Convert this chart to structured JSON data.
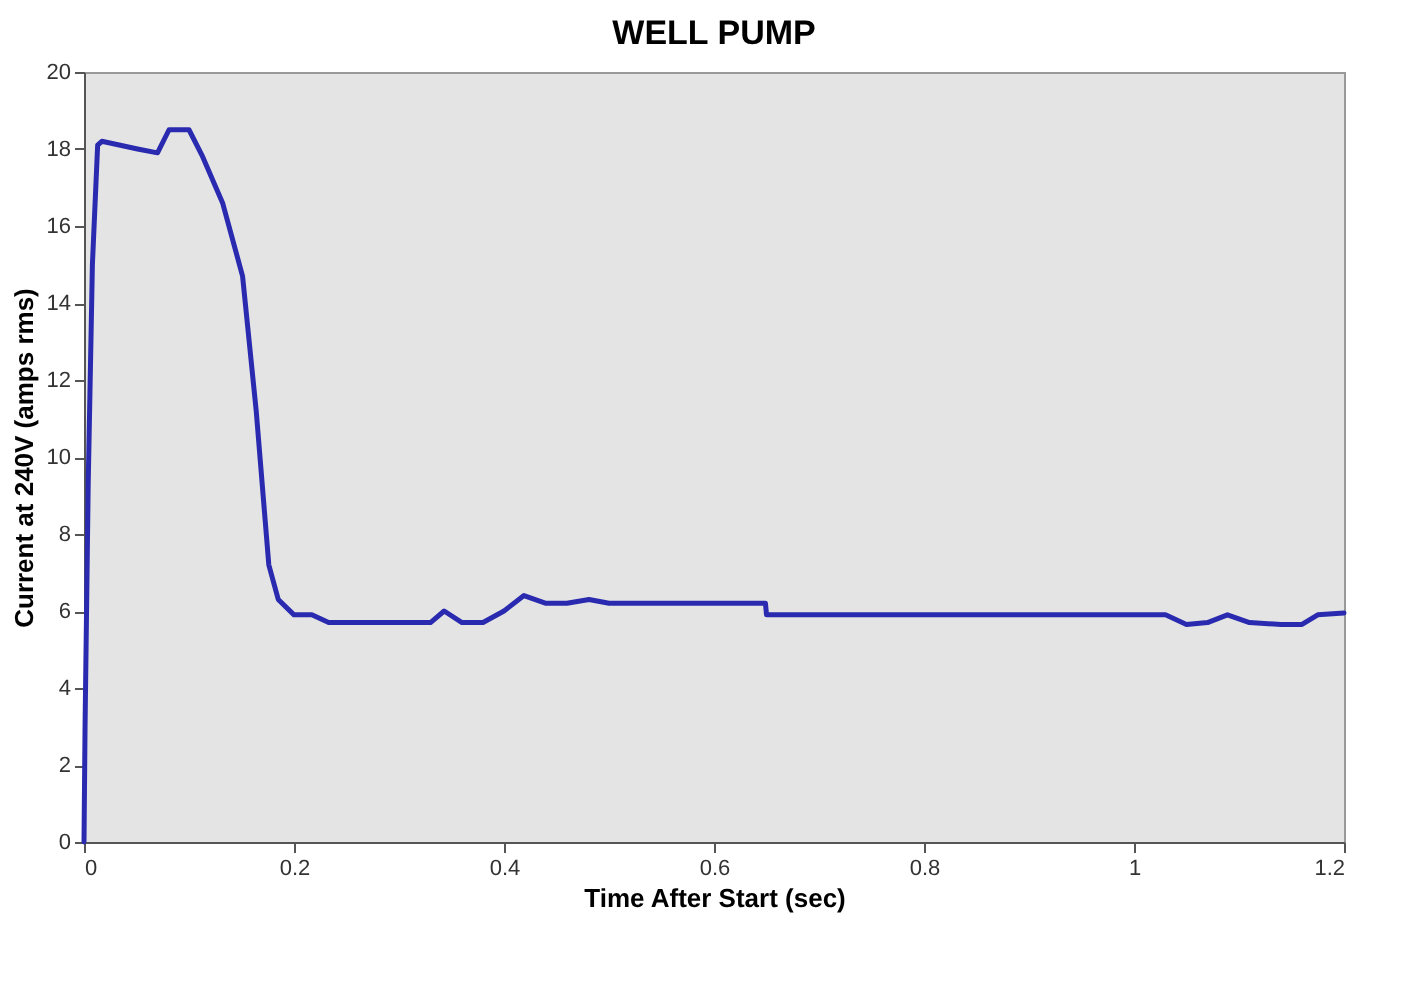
{
  "chart_data": {
    "type": "line",
    "title": "WELL PUMP",
    "xlabel": "Time After Start (sec)",
    "ylabel": "Current at 240V (amps rms)",
    "xlim": [
      0,
      1.2
    ],
    "xticks": [
      0,
      0.2,
      0.4,
      0.6,
      0.8,
      1,
      1.2
    ],
    "ylim": [
      0,
      20
    ],
    "yticks": [
      0,
      2,
      4,
      6,
      8,
      10,
      12,
      14,
      16,
      18,
      20
    ],
    "grid": false,
    "legend": false,
    "marker": "none",
    "line_style": "solid",
    "series": [
      {
        "color": "#2a2ab0",
        "x": [
          0,
          0.001,
          0.004,
          0.008,
          0.013,
          0.017,
          0.051,
          0.07,
          0.081,
          0.1,
          0.113,
          0.132,
          0.151,
          0.164,
          0.176,
          0.185,
          0.2,
          0.217,
          0.233,
          0.33,
          0.343,
          0.36,
          0.38,
          0.4,
          0.419,
          0.44,
          0.46,
          0.481,
          0.5,
          0.649,
          0.65,
          1.03,
          1.05,
          1.07,
          1.089,
          1.11,
          1.14,
          1.16,
          1.175,
          1.2
        ],
        "values": [
          0,
          3,
          9.3,
          15,
          18.1,
          18.2,
          18,
          17.9,
          18.5,
          18.5,
          17.8,
          16.6,
          14.7,
          11.2,
          7.2,
          6.3,
          5.9,
          5.9,
          5.7,
          5.7,
          6,
          5.7,
          5.7,
          6,
          6.4,
          6.2,
          6.2,
          6.3,
          6.2,
          6.2,
          5.9,
          5.9,
          5.65,
          5.7,
          5.9,
          5.7,
          5.65,
          5.65,
          5.9,
          5.95
        ]
      }
    ]
  }
}
